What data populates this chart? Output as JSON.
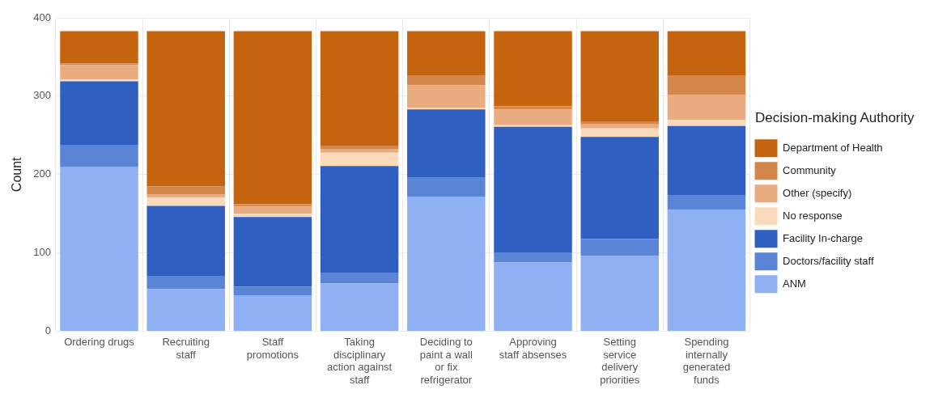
{
  "chart_data": {
    "type": "bar",
    "stacked": true,
    "ylabel": "Count",
    "legend_title": "Decision-making Authority",
    "categories": [
      "Ordering drugs",
      "Recruiting staff",
      "Staff promotions",
      "Taking disciplinary action against staff",
      "Deciding to paint a wall or fix refrigerator",
      "Approving staff absenses",
      "Setting service delivery priorities",
      "Spending internally generated funds"
    ],
    "series": [
      {
        "name": "ANM",
        "color": "#8fb0f3",
        "values": [
          210,
          54,
          46,
          61,
          172,
          88,
          96,
          155
        ]
      },
      {
        "name": "Doctors/facility staff",
        "color": "#5a85d6",
        "values": [
          28,
          16,
          11,
          14,
          24,
          12,
          22,
          19
        ]
      },
      {
        "name": "Facility In-charge",
        "color": "#2f5fc0",
        "values": [
          81,
          90,
          89,
          136,
          87,
          161,
          130,
          88
        ]
      },
      {
        "name": "No response",
        "color": "#fbd9bb",
        "values": [
          2,
          11,
          4,
          17,
          2,
          2,
          11,
          8
        ]
      },
      {
        "name": "Other (specify)",
        "color": "#e8ac80",
        "values": [
          19,
          4,
          9,
          4,
          29,
          20,
          5,
          32
        ]
      },
      {
        "name": "Community",
        "color": "#d4874a",
        "values": [
          2,
          10,
          3,
          5,
          12,
          4,
          4,
          24
        ]
      },
      {
        "name": "Department of Health",
        "color": "#c4640f",
        "values": [
          41,
          198,
          221,
          146,
          57,
          96,
          115,
          57
        ]
      }
    ],
    "ylim": [
      0,
      400
    ],
    "yticks": [
      0,
      100,
      200,
      300,
      400
    ],
    "grid": true,
    "legend": "right"
  }
}
